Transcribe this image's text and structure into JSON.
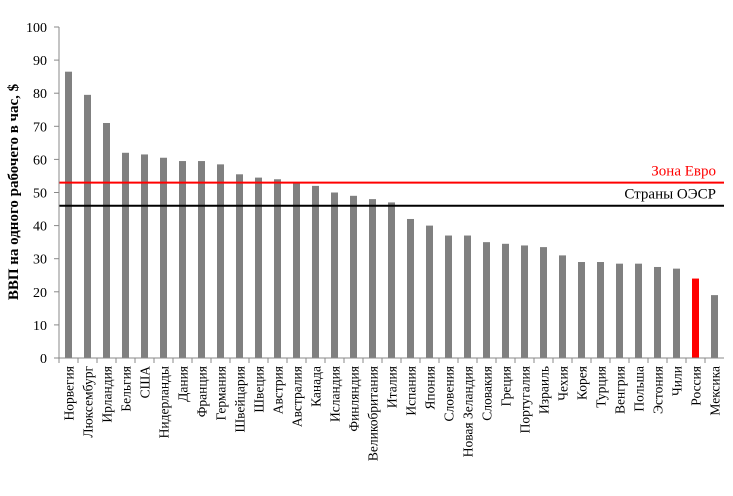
{
  "chart_data": {
    "type": "bar",
    "title": "",
    "xlabel": "",
    "ylabel": "ВВП на одного рабочего в час, $",
    "ylim": [
      0,
      100
    ],
    "yticks": [
      0,
      10,
      20,
      30,
      40,
      50,
      60,
      70,
      80,
      90,
      100
    ],
    "grid": false,
    "categories": [
      "Норвегия",
      "Люксембург",
      "Ирландия",
      "Бельгия",
      "США",
      "Нидерланды",
      "Дания",
      "Франция",
      "Германия",
      "Швейцария",
      "Швеция",
      "Австрия",
      "Австралия",
      "Канада",
      "Исландия",
      "Финляндия",
      "Великобритания",
      "Италия",
      "Испания",
      "Япония",
      "Словения",
      "Новая Зеландия",
      "Словакия",
      "Греция",
      "Португалия",
      "Израиль",
      "Чехия",
      "Корея",
      "Турция",
      "Венгрия",
      "Польша",
      "Эстония",
      "Чили",
      "Россия",
      "Мексика"
    ],
    "values": [
      86.5,
      79.5,
      71,
      62,
      61.5,
      60.5,
      59.5,
      59.5,
      58.5,
      55.5,
      54.5,
      54,
      53,
      52,
      50,
      49,
      48,
      47,
      42,
      40,
      37,
      37,
      35,
      34.5,
      34,
      33.5,
      31,
      29,
      29,
      28.5,
      28.5,
      27.5,
      27,
      24,
      19
    ],
    "bar_colors": {
      "default": "#808080",
      "Россия": "#ff0000"
    },
    "reference_lines": [
      {
        "label": "Зона Евро",
        "value": 53,
        "color": "#ff0000"
      },
      {
        "label": "Страны ОЭСР",
        "value": 46,
        "color": "#000000"
      }
    ]
  }
}
